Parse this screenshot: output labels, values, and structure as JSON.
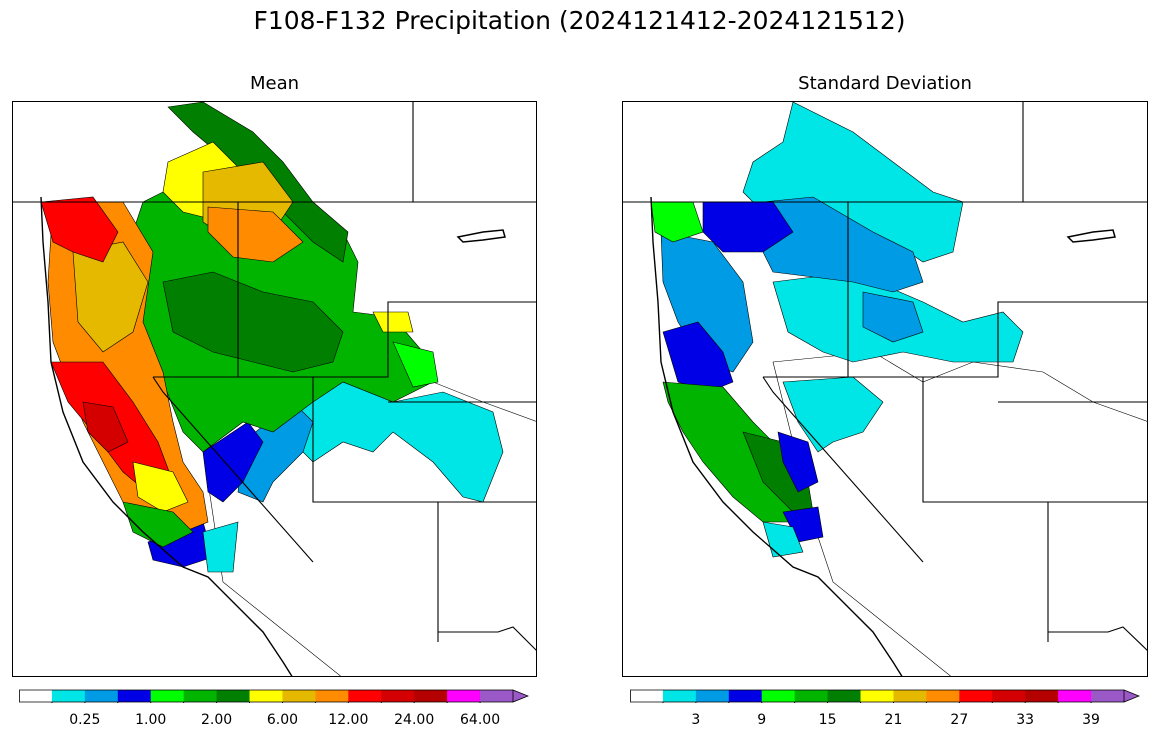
{
  "figure": {
    "title": "F108-F132 Precipitation (2024121412-2024121512)"
  },
  "panels": [
    {
      "title": "Mean",
      "colorbar": {
        "colors": [
          "#ffffff",
          "#00e5e5",
          "#009be5",
          "#0000e6",
          "#00ff00",
          "#00b400",
          "#007f00",
          "#ffff00",
          "#e5b900",
          "#ff8c00",
          "#ff0000",
          "#d40000",
          "#b40000",
          "#ff00ff",
          "#9b59c8"
        ],
        "tick_labels": [
          "0.25",
          "1.00",
          "2.00",
          "6.00",
          "12.00",
          "24.00",
          "64.00"
        ],
        "extend": "max"
      }
    },
    {
      "title": "Standard Deviation",
      "colorbar": {
        "colors": [
          "#ffffff",
          "#00e5e5",
          "#009be5",
          "#0000e6",
          "#00ff00",
          "#00b400",
          "#007f00",
          "#ffff00",
          "#e5b900",
          "#ff8c00",
          "#ff0000",
          "#d40000",
          "#b40000",
          "#ff00ff",
          "#9b59c8"
        ],
        "tick_labels": [
          "3",
          "9",
          "15",
          "21",
          "27",
          "33",
          "39"
        ],
        "extend": "max"
      }
    }
  ]
}
